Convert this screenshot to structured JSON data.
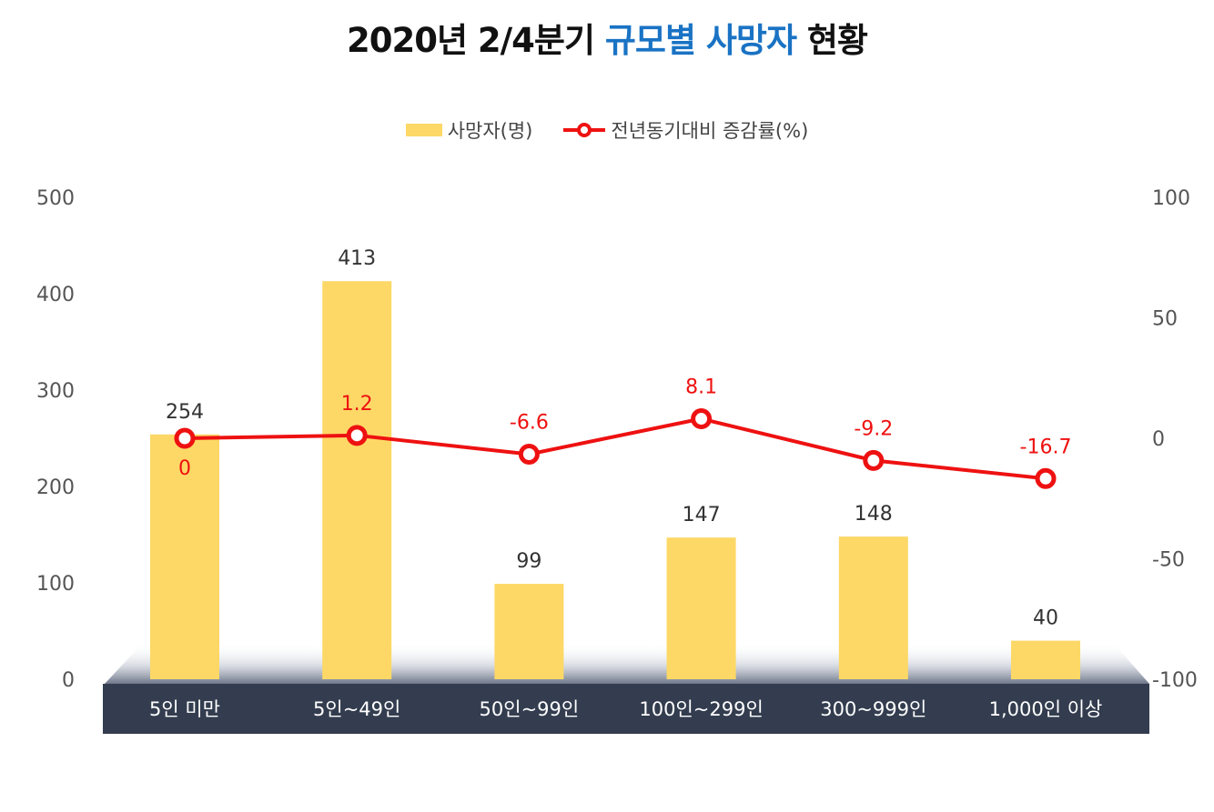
{
  "title": {
    "part1": "2020년 2/4분기 ",
    "highlight": "규모별 사망자",
    "part2": " 현황"
  },
  "colors": {
    "bar": "#fdd866",
    "line": "#ee1111",
    "axis_text": "#555555",
    "value_text": "#333333",
    "base_band": "#333d4f"
  },
  "chart_data": {
    "type": "bar",
    "categories": [
      "5인 미만",
      "5인~49인",
      "50인~99인",
      "100인~299인",
      "300~999인",
      "1,000인 이상"
    ],
    "series": [
      {
        "name": "사망자(명)",
        "type": "bar",
        "axis": "left",
        "values": [
          254,
          413,
          99,
          147,
          148,
          40
        ]
      },
      {
        "name": "전년동기대비 증감률(%)",
        "type": "line",
        "axis": "right",
        "values": [
          0,
          1.2,
          -6.6,
          8.1,
          -9.2,
          -16.7
        ]
      }
    ],
    "y_left": {
      "ticks": [
        "0",
        "100",
        "200",
        "300",
        "400",
        "500"
      ],
      "ylim": [
        0,
        500
      ]
    },
    "y_right": {
      "ticks": [
        "-100",
        "-50",
        "0",
        "50",
        "100"
      ],
      "ylim": [
        -100,
        100
      ]
    },
    "value_labels_bar": [
      "254",
      "413",
      "99",
      "147",
      "148",
      "40"
    ],
    "value_labels_line": [
      "0",
      "1.2",
      "-6.6",
      "8.1",
      "-9.2",
      "-16.7"
    ],
    "legend_position": "top-center",
    "grid": false
  }
}
